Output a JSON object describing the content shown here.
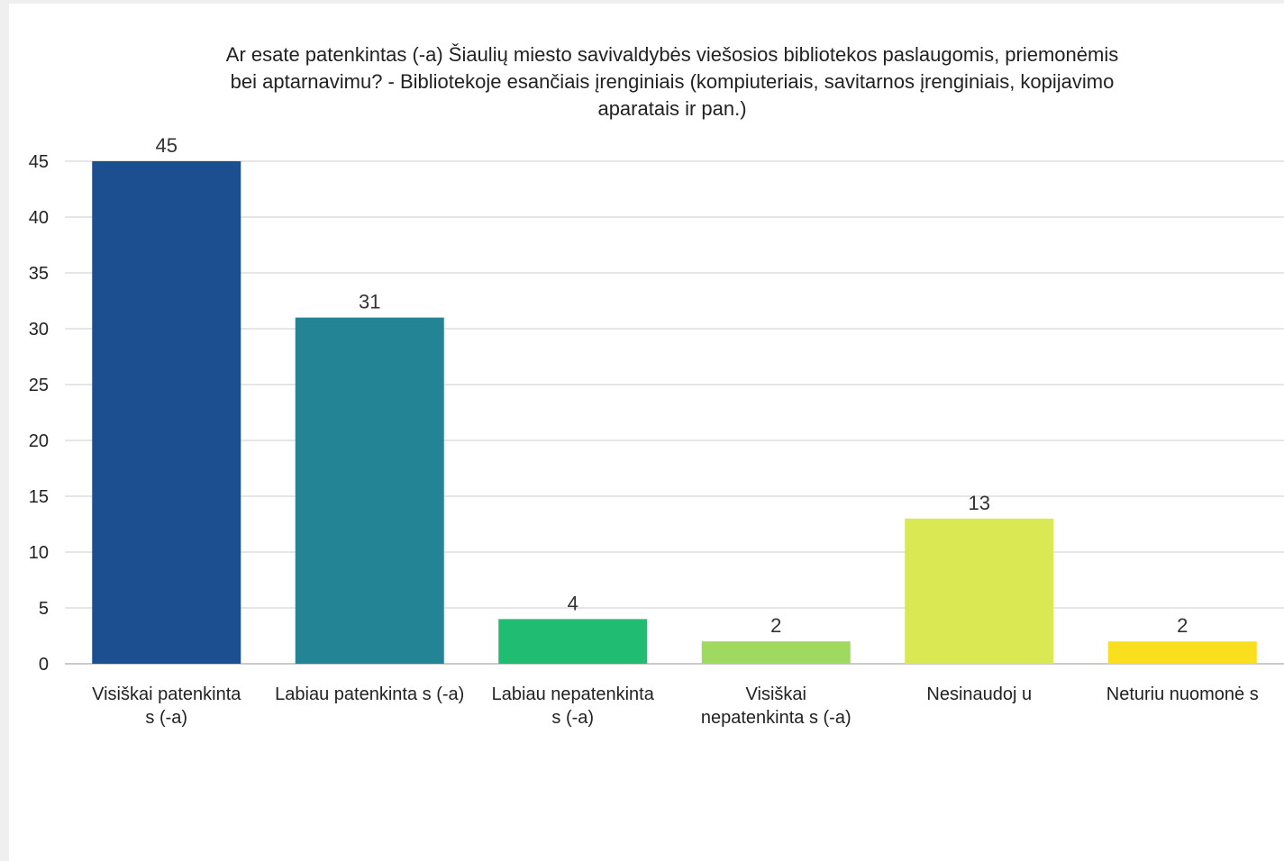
{
  "chart_data": {
    "type": "bar",
    "title_lines": [
      "Ar esate patenkintas (-a) Šiaulių miesto savivaldybės viešosios bibliotekos paslaugomis, priemonėmis",
      "bei aptarnavimu? - Bibliotekoje esančiais įrenginiais (kompiuteriais, savitarnos įrenginiais, kopijavimo",
      "aparatais ir pan.)"
    ],
    "categories": [
      [
        "Visiškai patenkinta",
        "s (-a)"
      ],
      [
        "Labiau patenkinta s (-a)"
      ],
      [
        "Labiau nepatenkinta",
        "s (-a)"
      ],
      [
        "Visiškai",
        "nepatenkinta s (-a)"
      ],
      [
        "Nesinaudoj u"
      ],
      [
        "Neturiu nuomonė s"
      ]
    ],
    "values": [
      45,
      31,
      4,
      2,
      13,
      2
    ],
    "colors": [
      "#1b4f8f",
      "#238495",
      "#1fbc71",
      "#a0d95f",
      "#d9e853",
      "#fadf1e"
    ],
    "ylim": [
      0,
      45
    ],
    "yticks": [
      "0",
      "5",
      "10",
      "15",
      "20",
      "25",
      "30",
      "35",
      "40",
      "45"
    ],
    "grid": true,
    "legend": "none"
  }
}
